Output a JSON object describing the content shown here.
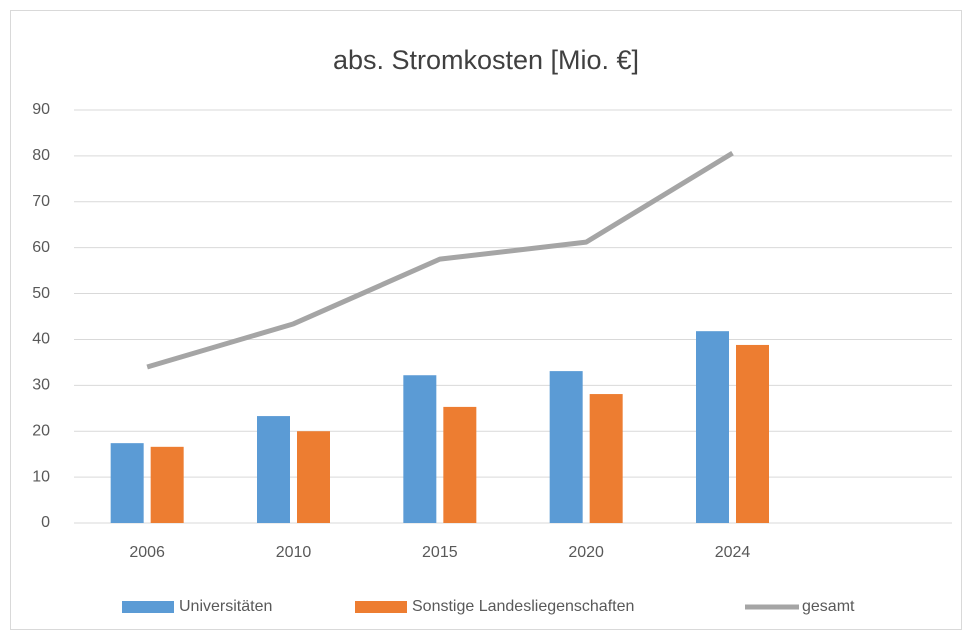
{
  "chart_data": {
    "type": "bar",
    "title": "abs. Stromkosten [Mio. €]",
    "categories": [
      "2006",
      "2010",
      "2015",
      "2020",
      "2024",
      null
    ],
    "series": [
      {
        "name": "Universitäten",
        "type": "bar",
        "color": "#5b9bd5",
        "values": [
          17.4,
          23.3,
          32.2,
          33.1,
          41.8,
          null
        ]
      },
      {
        "name": "Sonstige Landesliegenschaften",
        "type": "bar",
        "color": "#ed7d31",
        "values": [
          16.6,
          20.0,
          25.3,
          28.1,
          38.8,
          null
        ]
      },
      {
        "name": "gesamt",
        "type": "line",
        "color": "#a5a5a5",
        "values": [
          34.0,
          43.4,
          57.5,
          61.2,
          80.6,
          null
        ]
      }
    ],
    "ylim": [
      0,
      90
    ],
    "yticks": [
      0,
      10,
      20,
      30,
      40,
      50,
      60,
      70,
      80,
      90
    ],
    "grid": true,
    "legend": "bottom"
  }
}
